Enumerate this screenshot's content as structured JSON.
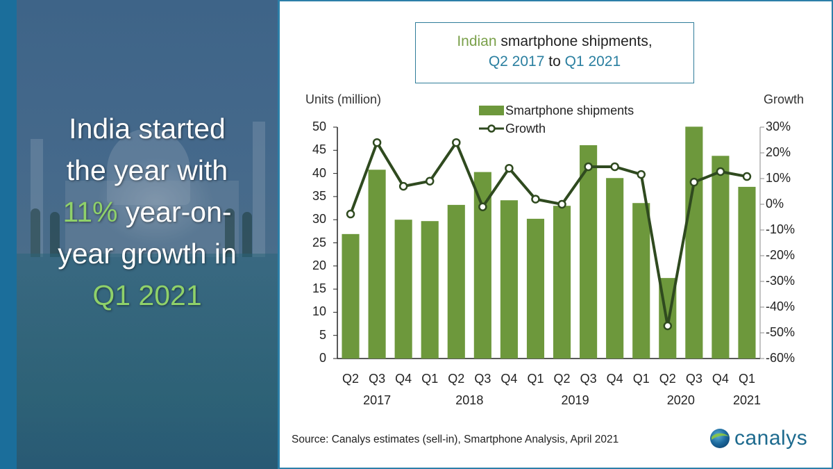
{
  "headline": {
    "line1": "India started",
    "line2": "the year with",
    "line3_highlight": "11%",
    "line3_rest": " year-on-",
    "line4": "year growth in",
    "line5_highlight": "Q1 2021"
  },
  "title": {
    "part1_highlight": "Indian",
    "part1_rest": " smartphone shipments,",
    "part2_start": "Q2 2017",
    "part2_mid": " to ",
    "part2_end": "Q1 2021"
  },
  "colors": {
    "bar": "#6d983c",
    "line": "#2f4a1f",
    "highlight_green": "#8fd16a",
    "brand_blue": "#1d6a8e"
  },
  "source": "Source:  Canalys estimates (sell-in), Smartphone Analysis, April 2021",
  "logo": {
    "text": "canalys",
    "icon": "globe-logo-icon"
  },
  "chart_data": {
    "type": "bar",
    "title": "Indian smartphone shipments, Q2 2017 to Q1 2021",
    "categories": [
      "Q2 2017",
      "Q3 2017",
      "Q4 2017",
      "Q1 2018",
      "Q2 2018",
      "Q3 2018",
      "Q4 2018",
      "Q1 2019",
      "Q2 2019",
      "Q3 2019",
      "Q4 2019",
      "Q1 2020",
      "Q2 2020",
      "Q3 2020",
      "Q4 2020",
      "Q1 2021"
    ],
    "x_tick_labels": [
      "Q2",
      "Q3",
      "Q4",
      "Q1",
      "Q2",
      "Q3",
      "Q4",
      "Q1",
      "Q2",
      "Q3",
      "Q4",
      "Q1",
      "Q2",
      "Q3",
      "Q4",
      "Q1"
    ],
    "x_year_labels": [
      {
        "label": "2017",
        "index": 1
      },
      {
        "label": "2018",
        "index": 4.5
      },
      {
        "label": "2019",
        "index": 8.5
      },
      {
        "label": "2020",
        "index": 12.5
      },
      {
        "label": "2021",
        "index": 15
      }
    ],
    "series": [
      {
        "name": "Smartphone shipments",
        "type": "bar",
        "axis": "left",
        "values": [
          26.9,
          40.8,
          30.0,
          29.7,
          33.2,
          40.3,
          34.2,
          30.2,
          33.0,
          46.1,
          39.0,
          33.6,
          17.4,
          50.1,
          43.8,
          37.1
        ]
      },
      {
        "name": "Growth",
        "type": "line",
        "axis": "right",
        "values": [
          -3.8,
          24.0,
          7.0,
          9.0,
          24.0,
          -1.0,
          14.0,
          2.0,
          0.0,
          14.6,
          14.6,
          11.6,
          -47.3,
          8.6,
          12.7,
          10.8
        ]
      }
    ],
    "ylabel": "Units (million)",
    "ylim": [
      0,
      50
    ],
    "yticks": [
      "0",
      "5",
      "10",
      "15",
      "20",
      "25",
      "30",
      "35",
      "40",
      "45",
      "50"
    ],
    "y2label": "Growth",
    "y2lim": [
      -60,
      30
    ],
    "y2ticks": [
      "-60%",
      "-50%",
      "-40%",
      "-30%",
      "-20%",
      "-10%",
      "0%",
      "10%",
      "20%",
      "30%"
    ],
    "legend": [
      "Smartphone shipments",
      "Growth"
    ],
    "legend_position": "top-center",
    "grid": false
  }
}
